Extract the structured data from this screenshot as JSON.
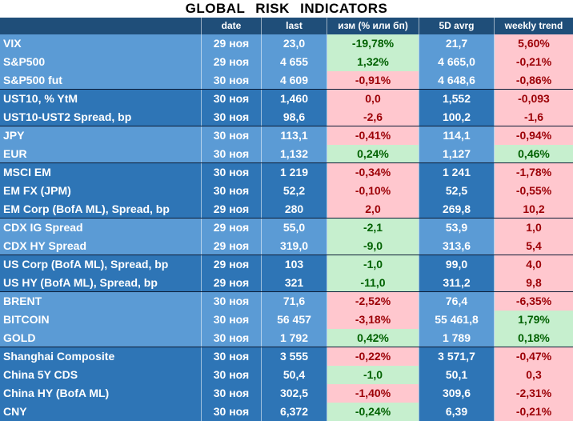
{
  "title": "GLOBAL   RISK   INDICATORS",
  "headers": {
    "name": "",
    "date": "date",
    "last": "last",
    "chg": "изм (% или бп)",
    "avg": "5D avrg",
    "wk": "weekly trend"
  },
  "colors": {
    "header_bg": "#1f4e79",
    "light_blue": "#5b9bd5",
    "dark_blue": "#2e75b6",
    "positive_bg": "#c6efce",
    "positive_text": "#006100",
    "negative_bg": "#ffc7ce",
    "negative_text": "#9c0006"
  },
  "rows": [
    {
      "name": "VIX",
      "date": "29 ноя",
      "last": "23,0",
      "chg": "-19,78%",
      "chg_tone": "pos",
      "avg": "21,7",
      "wk": "5,60%",
      "wk_tone": "neg",
      "band": "light"
    },
    {
      "name": "S&P500",
      "date": "29 ноя",
      "last": "4 655",
      "chg": "1,32%",
      "chg_tone": "pos",
      "avg": "4 665,0",
      "wk": "-0,21%",
      "wk_tone": "neg",
      "band": "light"
    },
    {
      "name": "S&P500 fut",
      "date": "30 ноя",
      "last": "4 609",
      "chg": "-0,91%",
      "chg_tone": "neg",
      "avg": "4 648,6",
      "wk": "-0,86%",
      "wk_tone": "neg",
      "band": "light"
    },
    {
      "name": "UST10, % YtM",
      "date": "30 ноя",
      "last": "1,460",
      "chg": "0,0",
      "chg_tone": "neg",
      "avg": "1,552",
      "wk": "-0,093",
      "wk_tone": "neg",
      "band": "dark"
    },
    {
      "name": "UST10-UST2 Spread, bp",
      "date": "30 ноя",
      "last": "98,6",
      "chg": "-2,6",
      "chg_tone": "neg",
      "avg": "100,2",
      "wk": "-1,6",
      "wk_tone": "neg",
      "band": "dark"
    },
    {
      "name": "JPY",
      "date": "30 ноя",
      "last": "113,1",
      "chg": "-0,41%",
      "chg_tone": "neg",
      "avg": "114,1",
      "wk": "-0,94%",
      "wk_tone": "neg",
      "band": "light"
    },
    {
      "name": "EUR",
      "date": "30 ноя",
      "last": "1,132",
      "chg": "0,24%",
      "chg_tone": "pos",
      "avg": "1,127",
      "wk": "0,46%",
      "wk_tone": "pos",
      "band": "light"
    },
    {
      "name": "MSCI EM",
      "date": "30 ноя",
      "last": "1 219",
      "chg": "-0,34%",
      "chg_tone": "neg",
      "avg": "1 241",
      "wk": "-1,78%",
      "wk_tone": "neg",
      "band": "dark"
    },
    {
      "name": "EM FX (JPM)",
      "date": "30 ноя",
      "last": "52,2",
      "chg": "-0,10%",
      "chg_tone": "neg",
      "avg": "52,5",
      "wk": "-0,55%",
      "wk_tone": "neg",
      "band": "dark"
    },
    {
      "name": "EM Corp (BofA ML), Spread, bp",
      "date": "29 ноя",
      "last": "280",
      "chg": "2,0",
      "chg_tone": "neg",
      "avg": "269,8",
      "wk": "10,2",
      "wk_tone": "neg",
      "band": "dark"
    },
    {
      "name": "CDX IG Spread",
      "date": "29 ноя",
      "last": "55,0",
      "chg": "-2,1",
      "chg_tone": "pos",
      "avg": "53,9",
      "wk": "1,0",
      "wk_tone": "neg",
      "band": "light"
    },
    {
      "name": "CDX HY Spread",
      "date": "29 ноя",
      "last": "319,0",
      "chg": "-9,0",
      "chg_tone": "pos",
      "avg": "313,6",
      "wk": "5,4",
      "wk_tone": "neg",
      "band": "light"
    },
    {
      "name": "US Corp (BofA ML), Spread, bp",
      "date": "29 ноя",
      "last": "103",
      "chg": "-1,0",
      "chg_tone": "pos",
      "avg": "99,0",
      "wk": "4,0",
      "wk_tone": "neg",
      "band": "dark"
    },
    {
      "name": "US HY (BofA ML), Spread, bp",
      "date": "29 ноя",
      "last": "321",
      "chg": "-11,0",
      "chg_tone": "pos",
      "avg": "311,2",
      "wk": "9,8",
      "wk_tone": "neg",
      "band": "dark"
    },
    {
      "name": "BRENT",
      "date": "30 ноя",
      "last": "71,6",
      "chg": "-2,52%",
      "chg_tone": "neg",
      "avg": "76,4",
      "wk": "-6,35%",
      "wk_tone": "neg",
      "band": "light"
    },
    {
      "name": "BITCOIN",
      "date": "30 ноя",
      "last": "56 457",
      "chg": "-3,18%",
      "chg_tone": "neg",
      "avg": "55 461,8",
      "wk": "1,79%",
      "wk_tone": "pos",
      "band": "light"
    },
    {
      "name": "GOLD",
      "date": "30 ноя",
      "last": "1 792",
      "chg": "0,42%",
      "chg_tone": "pos",
      "avg": "1 789",
      "wk": "0,18%",
      "wk_tone": "pos",
      "band": "light"
    },
    {
      "name": "Shanghai Composite",
      "date": "30 ноя",
      "last": "3 555",
      "chg": "-0,22%",
      "chg_tone": "neg",
      "avg": "3 571,7",
      "wk": "-0,47%",
      "wk_tone": "neg",
      "band": "dark"
    },
    {
      "name": "China 5Y CDS",
      "date": "30 ноя",
      "last": "50,4",
      "chg": "-1,0",
      "chg_tone": "pos",
      "avg": "50,1",
      "wk": "0,3",
      "wk_tone": "neg",
      "band": "dark"
    },
    {
      "name": "China HY (BofA ML)",
      "date": "30 ноя",
      "last": "302,5",
      "chg": "-1,40%",
      "chg_tone": "neg",
      "avg": "309,6",
      "wk": "-2,31%",
      "wk_tone": "neg",
      "band": "dark"
    },
    {
      "name": "CNY",
      "date": "30 ноя",
      "last": "6,372",
      "chg": "-0,24%",
      "chg_tone": "pos",
      "avg": "6,39",
      "wk": "-0,21%",
      "wk_tone": "neg",
      "band": "dark"
    }
  ]
}
